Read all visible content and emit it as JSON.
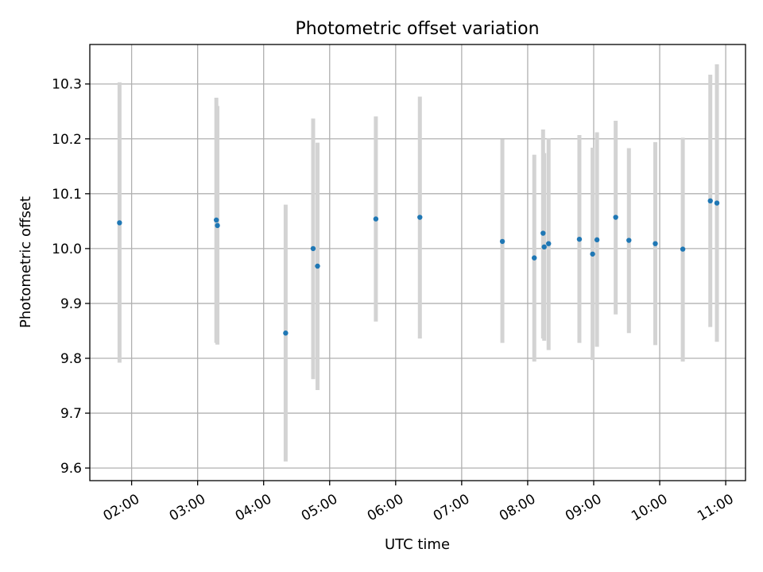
{
  "chart_data": {
    "type": "scatter",
    "title": "Photometric offset variation",
    "xlabel": "UTC time",
    "ylabel": "Photometric offset",
    "x_axis_type": "time",
    "xlim": [
      "01:22",
      "11:18"
    ],
    "ylim": [
      9.577,
      10.372
    ],
    "x_ticks": [
      "02:00",
      "03:00",
      "04:00",
      "05:00",
      "06:00",
      "07:00",
      "08:00",
      "09:00",
      "10:00",
      "11:00"
    ],
    "y_ticks": [
      "9.6",
      "9.7",
      "9.8",
      "9.9",
      "10.0",
      "10.1",
      "10.2",
      "10.3"
    ],
    "grid": true,
    "marker_color": "#1f77b4",
    "errorbar_color": "#d3d3d3",
    "points": [
      {
        "time": "01:49",
        "y": 10.047,
        "err_low": 9.792,
        "err_high": 10.303
      },
      {
        "time": "03:17",
        "y": 10.052,
        "err_low": 9.828,
        "err_high": 10.275
      },
      {
        "time": "03:18",
        "y": 10.042,
        "err_low": 9.825,
        "err_high": 10.26
      },
      {
        "time": "04:20",
        "y": 9.846,
        "err_low": 9.612,
        "err_high": 10.08
      },
      {
        "time": "04:45",
        "y": 10.0,
        "err_low": 9.762,
        "err_high": 10.237
      },
      {
        "time": "04:49",
        "y": 9.968,
        "err_low": 9.742,
        "err_high": 10.193
      },
      {
        "time": "05:42",
        "y": 10.054,
        "err_low": 9.867,
        "err_high": 10.241
      },
      {
        "time": "06:22",
        "y": 10.057,
        "err_low": 9.836,
        "err_high": 10.277
      },
      {
        "time": "07:37",
        "y": 10.013,
        "err_low": 9.828,
        "err_high": 10.199
      },
      {
        "time": "08:06",
        "y": 9.983,
        "err_low": 9.794,
        "err_high": 10.171
      },
      {
        "time": "08:14",
        "y": 10.028,
        "err_low": 9.836,
        "err_high": 10.217
      },
      {
        "time": "08:15",
        "y": 10.003,
        "err_low": 9.832,
        "err_high": 10.174
      },
      {
        "time": "08:19",
        "y": 10.009,
        "err_low": 9.815,
        "err_high": 10.201
      },
      {
        "time": "08:47",
        "y": 10.017,
        "err_low": 9.828,
        "err_high": 10.207
      },
      {
        "time": "08:59",
        "y": 9.99,
        "err_low": 9.797,
        "err_high": 10.184
      },
      {
        "time": "09:03",
        "y": 10.016,
        "err_low": 9.821,
        "err_high": 10.212
      },
      {
        "time": "09:20",
        "y": 10.057,
        "err_low": 9.88,
        "err_high": 10.233
      },
      {
        "time": "09:32",
        "y": 10.015,
        "err_low": 9.846,
        "err_high": 10.183
      },
      {
        "time": "09:56",
        "y": 10.009,
        "err_low": 9.824,
        "err_high": 10.194
      },
      {
        "time": "10:21",
        "y": 9.999,
        "err_low": 9.794,
        "err_high": 10.202
      },
      {
        "time": "10:46",
        "y": 10.087,
        "err_low": 9.857,
        "err_high": 10.317
      },
      {
        "time": "10:52",
        "y": 10.083,
        "err_low": 9.83,
        "err_high": 10.336
      }
    ]
  }
}
